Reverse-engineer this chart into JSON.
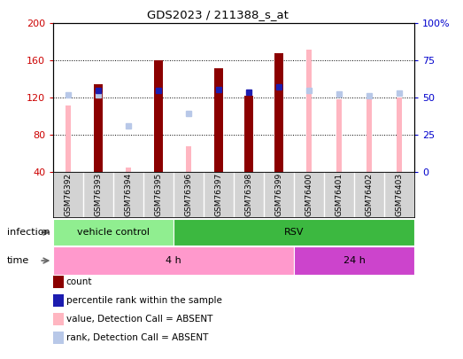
{
  "title": "GDS2023 / 211388_s_at",
  "samples": [
    "GSM76392",
    "GSM76393",
    "GSM76394",
    "GSM76395",
    "GSM76396",
    "GSM76397",
    "GSM76398",
    "GSM76399",
    "GSM76400",
    "GSM76401",
    "GSM76402",
    "GSM76403"
  ],
  "count_values": [
    null,
    135,
    null,
    160,
    null,
    152,
    122,
    168,
    null,
    null,
    null,
    null
  ],
  "percentile_values": [
    null,
    128,
    null,
    128,
    null,
    129,
    126,
    132,
    null,
    null,
    null,
    null
  ],
  "absent_value_values": [
    112,
    null,
    45,
    128,
    68,
    null,
    null,
    null,
    172,
    118,
    120,
    120
  ],
  "absent_rank_values": [
    123,
    123,
    90,
    null,
    103,
    null,
    null,
    null,
    128,
    124,
    122,
    125
  ],
  "count_color": "#8B0000",
  "percentile_color": "#1C1CB0",
  "absent_value_color": "#FFB6C1",
  "absent_rank_color": "#B8C8E8",
  "ylim_left": [
    40,
    200
  ],
  "ylim_right": [
    0,
    100
  ],
  "left_yticks": [
    40,
    80,
    120,
    160,
    200
  ],
  "right_yticks": [
    0,
    25,
    50,
    75,
    100
  ],
  "infection_groups": [
    {
      "label": "vehicle control",
      "start": 0,
      "end": 3,
      "color": "#90EE90"
    },
    {
      "label": "RSV",
      "start": 4,
      "end": 11,
      "color": "#3CB840"
    }
  ],
  "time_groups": [
    {
      "label": "4 h",
      "start": 0,
      "end": 7,
      "color": "#FF99CC"
    },
    {
      "label": "24 h",
      "start": 8,
      "end": 11,
      "color": "#CC44CC"
    }
  ],
  "legend_items": [
    {
      "label": "count",
      "color": "#8B0000"
    },
    {
      "label": "percentile rank within the sample",
      "color": "#1C1CB0"
    },
    {
      "label": "value, Detection Call = ABSENT",
      "color": "#FFB6C1"
    },
    {
      "label": "rank, Detection Call = ABSENT",
      "color": "#B8C8E8"
    }
  ],
  "count_bar_width": 0.28,
  "absent_bar_width": 0.18,
  "infection_label": "infection",
  "time_label": "time",
  "left_axis_color": "#CC0000",
  "right_axis_color": "#0000CC",
  "plot_bg_color": "#FFFFFF",
  "label_area_color": "#D3D3D3"
}
